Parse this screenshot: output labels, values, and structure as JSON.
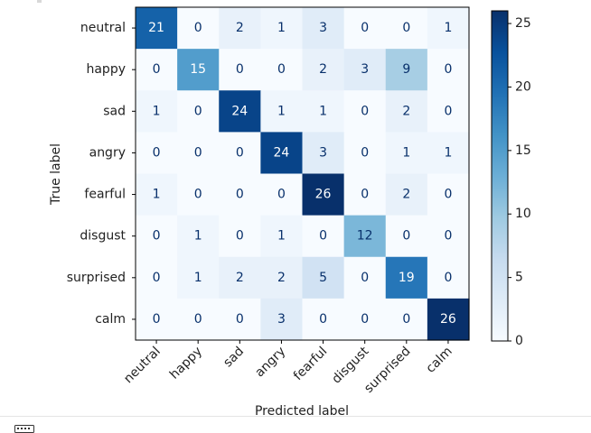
{
  "chart_data": {
    "type": "heatmap",
    "title": "",
    "xlabel": "Predicted label",
    "ylabel": "True label",
    "x_categories": [
      "neutral",
      "happy",
      "sad",
      "angry",
      "fearful",
      "disgust",
      "surprised",
      "calm"
    ],
    "y_categories": [
      "neutral",
      "happy",
      "sad",
      "angry",
      "fearful",
      "disgust",
      "surprised",
      "calm"
    ],
    "values": [
      [
        21,
        0,
        2,
        1,
        3,
        0,
        0,
        1
      ],
      [
        0,
        15,
        0,
        0,
        2,
        3,
        9,
        0
      ],
      [
        1,
        0,
        24,
        1,
        1,
        0,
        2,
        0
      ],
      [
        0,
        0,
        0,
        24,
        3,
        0,
        1,
        1
      ],
      [
        1,
        0,
        0,
        0,
        26,
        0,
        2,
        0
      ],
      [
        0,
        1,
        0,
        1,
        0,
        12,
        0,
        0
      ],
      [
        0,
        1,
        2,
        2,
        5,
        0,
        19,
        0
      ],
      [
        0,
        0,
        0,
        3,
        0,
        0,
        0,
        26
      ]
    ],
    "colormap": "Blues",
    "colorbar": {
      "min": 0,
      "max": 26,
      "ticks": [
        0,
        5,
        10,
        15,
        20,
        25
      ],
      "tick_labels": [
        "0",
        "5",
        "10",
        "15",
        "20",
        "25"
      ]
    }
  },
  "footer": {
    "icon": "keyboard-icon"
  }
}
